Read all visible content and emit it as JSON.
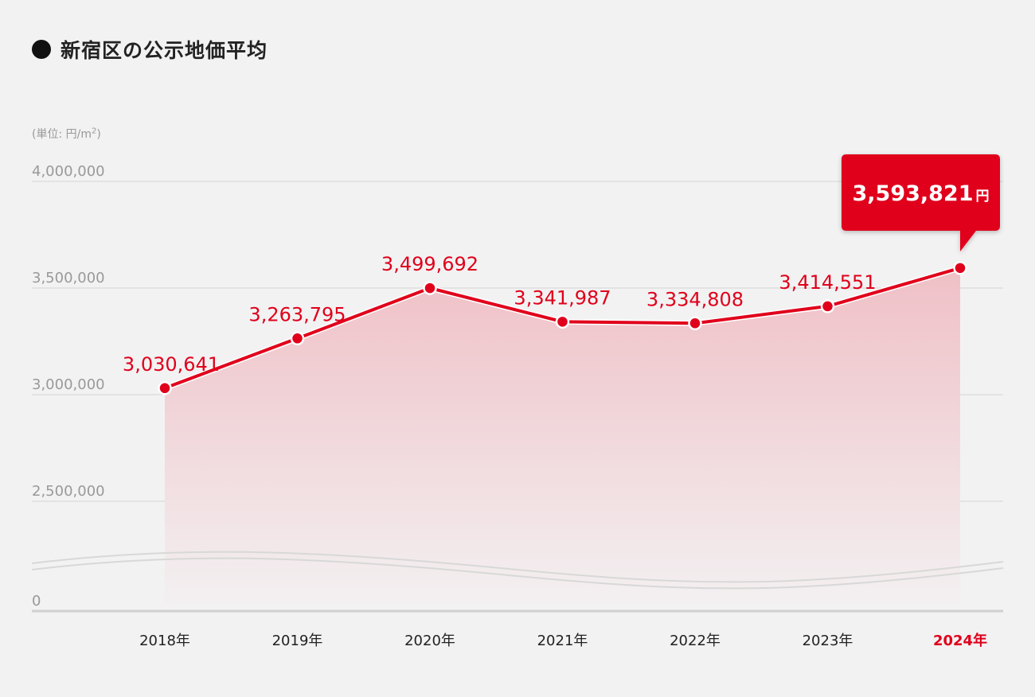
{
  "chart_data": {
    "type": "area",
    "title": "新宿区の公示地価平均",
    "unit_label": "(単位: 円/m",
    "unit_sup": "2",
    "unit_close": ")",
    "categories": [
      "2018年",
      "2019年",
      "2020年",
      "2021年",
      "2022年",
      "2023年",
      "2024年"
    ],
    "values": [
      3030641,
      3263795,
      3499692,
      3341987,
      3334808,
      3414551,
      3593821
    ],
    "value_labels": [
      "3,030,641",
      "3,263,795",
      "3,499,692",
      "3,341,987",
      "3,334,808",
      "3,414,551",
      "3,593,821"
    ],
    "y_ticks": [
      {
        "value": 4000000,
        "label": "4,000,000"
      },
      {
        "value": 3500000,
        "label": "3,500,000"
      },
      {
        "value": 3000000,
        "label": "3,000,000"
      },
      {
        "value": 2500000,
        "label": "2,500,000"
      },
      {
        "value": 0,
        "label": "0"
      }
    ],
    "axis_break": true,
    "grid": true,
    "highlight": {
      "index": 6,
      "label": "3,593,821",
      "suffix": "円"
    },
    "colors": {
      "line": "#e0001b",
      "point": "#e0001b",
      "area_top": "#efc0c6",
      "area_bottom": "#f3f0f1",
      "grid": "#d4d4d4",
      "axis_text": "#999999",
      "highlight_box": "#e0001b"
    }
  }
}
